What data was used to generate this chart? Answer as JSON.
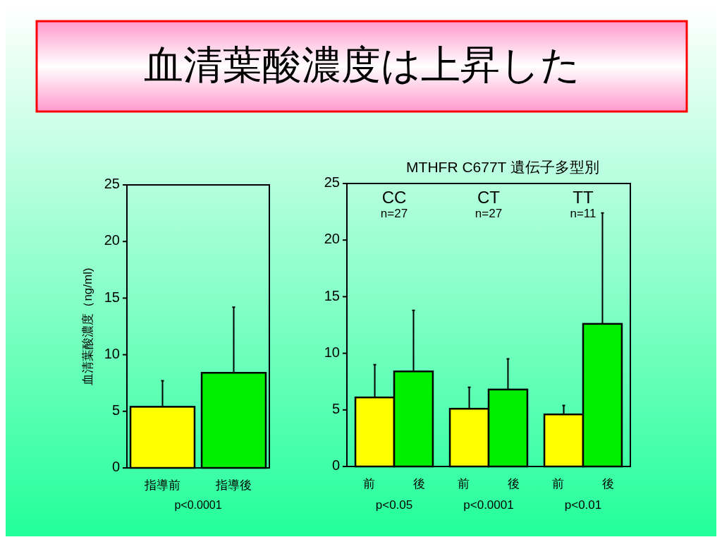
{
  "chart_data": [
    {
      "type": "bar",
      "title": "血清葉酸濃度は上昇した",
      "ylabel": "血清葉酸濃度（ng/ml)",
      "categories": [
        "指導前",
        "指導後"
      ],
      "values": [
        5.4,
        8.4
      ],
      "colors": [
        "#ffff00",
        "#00ee00"
      ],
      "errors": [
        [
          5.4,
          7.7
        ],
        [
          8.4,
          14.2
        ]
      ],
      "ylim": [
        0,
        25
      ],
      "yticks": [
        0,
        5,
        10,
        15,
        20,
        25
      ],
      "annotations": [
        "p<0.0001"
      ]
    },
    {
      "type": "bar",
      "title": "MTHFR C677T 遺伝子多型別",
      "categories": [
        "前",
        "後",
        "前",
        "後",
        "前",
        "後"
      ],
      "values": [
        6.1,
        8.4,
        5.1,
        6.8,
        4.6,
        12.6
      ],
      "colors": [
        "#ffff00",
        "#00ee00",
        "#ffff00",
        "#00ee00",
        "#ffff00",
        "#00ee00"
      ],
      "errors": [
        [
          6.1,
          9.0
        ],
        [
          8.4,
          13.8
        ],
        [
          5.1,
          7.0
        ],
        [
          6.8,
          9.5
        ],
        [
          4.6,
          5.4
        ],
        [
          12.6,
          22.4
        ]
      ],
      "ylim": [
        0,
        25
      ],
      "yticks": [
        0,
        5,
        10,
        15,
        20,
        25
      ],
      "annotations": [
        "CC",
        "n=27",
        "p<0.05",
        "CT",
        "n=27",
        "p<0.0001",
        "TT",
        "n=11",
        "p<0.01"
      ]
    }
  ]
}
